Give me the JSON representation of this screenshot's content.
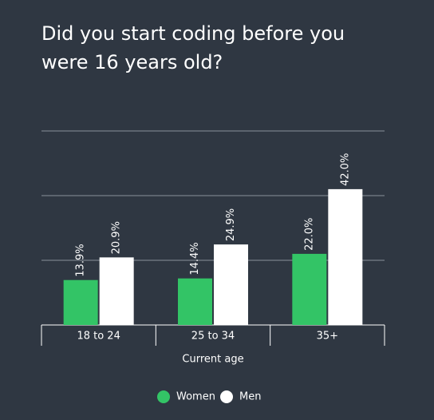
{
  "chart_data": {
    "type": "bar",
    "title": "Did you start coding before you were 16 years old?",
    "x_label": "Current age",
    "categories": [
      "18 to 24",
      "25 to 34",
      "35+"
    ],
    "series": [
      {
        "name": "Women",
        "color": "#33c466",
        "values": [
          13.9,
          14.4,
          22.0
        ],
        "value_labels": [
          "13.9%",
          "14.4%",
          "22.0%"
        ]
      },
      {
        "name": "Men",
        "color": "#ffffff",
        "values": [
          20.9,
          24.9,
          42.0
        ],
        "value_labels": [
          "20.9%",
          "24.9%",
          "42.0%"
        ]
      }
    ],
    "ylim": [
      0,
      60
    ],
    "yticks": [
      0,
      20,
      40,
      60
    ],
    "grid": true,
    "legend": "bottom"
  }
}
